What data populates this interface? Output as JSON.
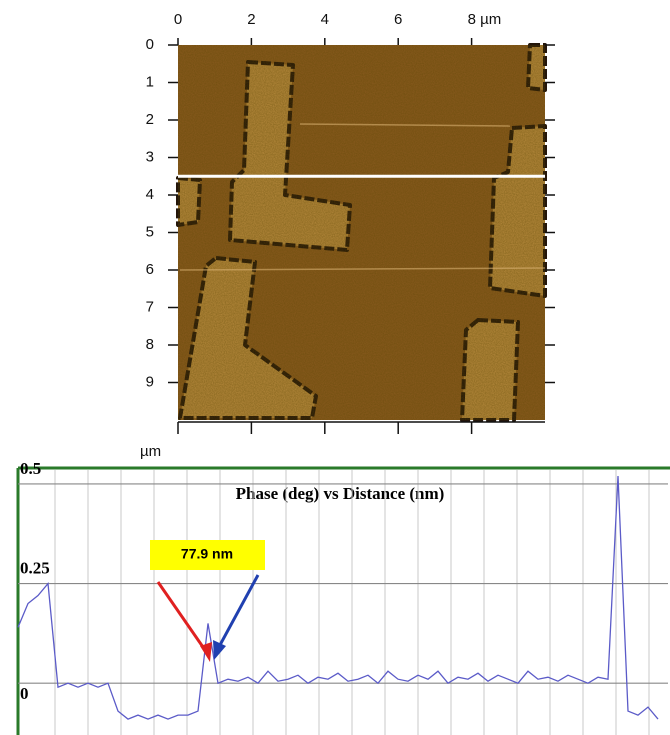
{
  "chart_data": [
    {
      "type": "image",
      "x_label": "µm",
      "xlim": [
        0,
        10
      ],
      "xticks": [
        0,
        2,
        4,
        6,
        {
          "value": 8,
          "label": "8 µm"
        }
      ],
      "ylim": [
        10,
        0
      ],
      "yticks": [
        0,
        1,
        2,
        3,
        4,
        5,
        6,
        7,
        8,
        9
      ],
      "profile_line_y": 3.5
    },
    {
      "type": "line",
      "title": "Phase (deg) vs Distance (nm)",
      "annotation": "77.9 nm",
      "ylim": [
        -0.13,
        0.54
      ],
      "yticks": [
        0,
        0.25,
        0.5
      ],
      "grid": true,
      "color": "#5b5bc8",
      "values": [
        0.14,
        0.2,
        0.22,
        0.25,
        -0.01,
        0.0,
        -0.01,
        0.0,
        -0.01,
        0.0,
        -0.07,
        -0.09,
        -0.08,
        -0.09,
        -0.08,
        -0.09,
        -0.08,
        -0.08,
        -0.07,
        0.15,
        0.0,
        0.01,
        0.005,
        0.015,
        0.0,
        0.03,
        0.005,
        0.01,
        0.02,
        0.0,
        0.015,
        0.01,
        0.025,
        0.005,
        0.01,
        0.02,
        0.0,
        0.03,
        0.01,
        0.005,
        0.02,
        0.01,
        0.03,
        0.0,
        0.015,
        0.01,
        0.025,
        0.005,
        0.02,
        0.01,
        0.0,
        0.03,
        0.01,
        0.015,
        0.005,
        0.02,
        0.01,
        0.0,
        0.015,
        0.01,
        0.52,
        -0.07,
        -0.08,
        -0.06,
        -0.09
      ]
    }
  ]
}
